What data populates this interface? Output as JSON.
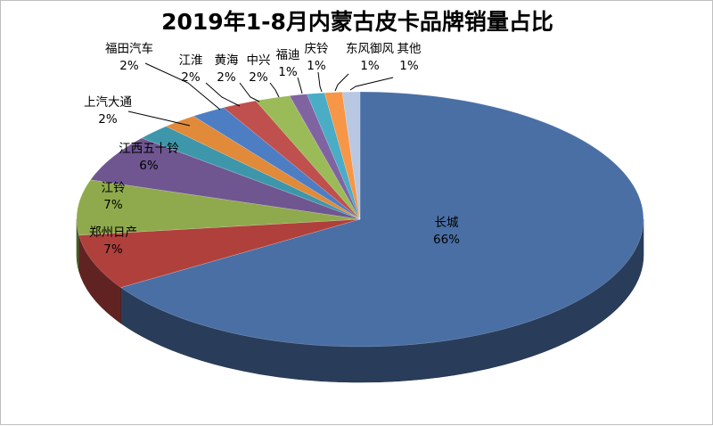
{
  "chart_data": {
    "type": "pie",
    "title": "2019年1-8月内蒙古皮卡品牌销量占比",
    "categories": [
      "长城",
      "郑州日产",
      "江铃",
      "江西五十铃",
      "上汽大通",
      "福田汽车",
      "江淮",
      "黄海",
      "中兴",
      "福迪",
      "庆铃",
      "东风御风",
      "其他"
    ],
    "values": [
      66,
      7,
      7,
      6,
      2,
      2,
      2,
      2,
      2,
      1,
      1,
      1,
      1
    ],
    "value_labels": [
      "66%",
      "7%",
      "7%",
      "6%",
      "2%",
      "2%",
      "2%",
      "2%",
      "2%",
      "1%",
      "1%",
      "1%",
      "1%"
    ],
    "colors": [
      "#4a6fa5",
      "#b0403c",
      "#8faa4c",
      "#6f5690",
      "#3e96ab",
      "#e08a3a",
      "#4d7ec4",
      "#c0504d",
      "#9bbb59",
      "#8064a2",
      "#4bacc6",
      "#f79646",
      "#b8c8e2"
    ],
    "style": "3d-exploded-tilted",
    "legend": "none"
  }
}
